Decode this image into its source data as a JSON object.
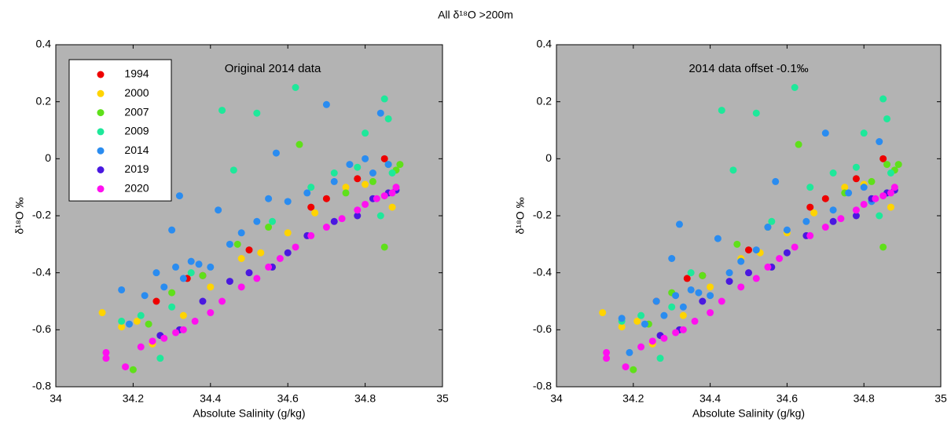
{
  "title": "All δ¹⁸O >200m",
  "chart_data": [
    {
      "type": "scatter",
      "annotation": "Original 2014 data",
      "xlabel": "Absolute Salinity (g/kg)",
      "ylabel": "δ¹⁸O ‰",
      "xlim": [
        34,
        35
      ],
      "ylim": [
        -0.8,
        0.4
      ],
      "xticks": [
        34,
        34.2,
        34.4,
        34.6,
        34.8,
        35
      ],
      "yticks": [
        -0.8,
        -0.6,
        -0.4,
        -0.2,
        0,
        0.2,
        0.4
      ],
      "background": "#b3b3b3",
      "legend": "upper left",
      "series": [
        {
          "name": "1994",
          "color": "#ee0000",
          "x": [
            34.26,
            34.34,
            34.38,
            34.5,
            34.66,
            34.7,
            34.78,
            34.85
          ],
          "values": [
            -0.5,
            -0.42,
            -0.41,
            -0.32,
            -0.17,
            -0.14,
            -0.07,
            0.0
          ]
        },
        {
          "name": "2000",
          "color": "#ffd400",
          "x": [
            34.12,
            34.17,
            34.21,
            34.25,
            34.33,
            34.4,
            34.48,
            34.53,
            34.6,
            34.67,
            34.75,
            34.8,
            34.87
          ],
          "values": [
            -0.54,
            -0.59,
            -0.57,
            -0.65,
            -0.55,
            -0.45,
            -0.35,
            -0.33,
            -0.26,
            -0.19,
            -0.1,
            -0.09,
            -0.17
          ]
        },
        {
          "name": "2007",
          "color": "#5fe01a",
          "x": [
            34.2,
            34.24,
            34.3,
            34.38,
            34.47,
            34.55,
            34.63,
            34.75,
            34.82,
            34.86,
            34.88,
            34.89,
            34.85
          ],
          "values": [
            -0.74,
            -0.58,
            -0.47,
            -0.41,
            -0.3,
            -0.24,
            0.05,
            -0.12,
            -0.08,
            -0.02,
            -0.04,
            -0.02,
            -0.31
          ]
        },
        {
          "name": "2009",
          "color": "#1ee89a",
          "x": [
            34.17,
            34.22,
            34.27,
            34.3,
            34.35,
            34.43,
            34.46,
            34.52,
            34.56,
            34.62,
            34.66,
            34.72,
            34.78,
            34.8,
            34.85,
            34.86,
            34.87,
            34.84
          ],
          "values": [
            -0.57,
            -0.55,
            -0.7,
            -0.52,
            -0.4,
            0.17,
            -0.04,
            0.16,
            -0.22,
            0.25,
            -0.1,
            -0.05,
            -0.03,
            0.09,
            0.21,
            0.14,
            -0.05,
            -0.2
          ]
        },
        {
          "name": "2014",
          "color": "#2a8cf0",
          "x": [
            34.17,
            34.19,
            34.23,
            34.26,
            34.28,
            34.3,
            34.31,
            34.32,
            34.33,
            34.35,
            34.37,
            34.4,
            34.42,
            34.45,
            34.48,
            34.52,
            34.55,
            34.57,
            34.6,
            34.65,
            34.7,
            34.72,
            34.76,
            34.8,
            34.82,
            34.84,
            34.86
          ],
          "values": [
            -0.46,
            -0.58,
            -0.48,
            -0.4,
            -0.45,
            -0.25,
            -0.38,
            -0.13,
            -0.42,
            -0.36,
            -0.37,
            -0.38,
            -0.18,
            -0.3,
            -0.26,
            -0.22,
            -0.14,
            0.02,
            -0.15,
            -0.12,
            0.19,
            -0.08,
            -0.02,
            0.0,
            -0.05,
            0.16,
            -0.02
          ]
        },
        {
          "name": "2019",
          "color": "#4a18e0",
          "x": [
            34.27,
            34.32,
            34.38,
            34.45,
            34.5,
            34.56,
            34.6,
            34.65,
            34.72,
            34.78,
            34.82,
            34.86,
            34.88
          ],
          "values": [
            -0.62,
            -0.6,
            -0.5,
            -0.43,
            -0.4,
            -0.38,
            -0.33,
            -0.27,
            -0.22,
            -0.2,
            -0.14,
            -0.12,
            -0.11
          ]
        },
        {
          "name": "2020",
          "color": "#ff10f0",
          "x": [
            34.13,
            34.13,
            34.18,
            34.22,
            34.25,
            34.28,
            34.31,
            34.33,
            34.36,
            34.4,
            34.43,
            34.48,
            34.52,
            34.55,
            34.58,
            34.62,
            34.66,
            34.7,
            34.74,
            34.78,
            34.8,
            34.83,
            34.85,
            34.87,
            34.88
          ],
          "values": [
            -0.68,
            -0.7,
            -0.73,
            -0.66,
            -0.64,
            -0.63,
            -0.61,
            -0.6,
            -0.57,
            -0.54,
            -0.5,
            -0.45,
            -0.42,
            -0.38,
            -0.35,
            -0.31,
            -0.27,
            -0.24,
            -0.21,
            -0.18,
            -0.16,
            -0.14,
            -0.13,
            -0.12,
            -0.1
          ]
        }
      ]
    },
    {
      "type": "scatter",
      "annotation": "2014 data offset -0.1‰",
      "xlabel": "Absolute Salinity (g/kg)",
      "ylabel": "δ¹⁸O ‰",
      "xlim": [
        34,
        35
      ],
      "ylim": [
        -0.8,
        0.4
      ],
      "xticks": [
        34,
        34.2,
        34.4,
        34.6,
        34.8,
        35
      ],
      "yticks": [
        -0.8,
        -0.6,
        -0.4,
        -0.2,
        0,
        0.2,
        0.4
      ],
      "background": "#b3b3b3",
      "series": [
        {
          "color": "#ee0000",
          "x": [
            34.26,
            34.34,
            34.38,
            34.5,
            34.66,
            34.7,
            34.78,
            34.85
          ],
          "values": [
            -0.5,
            -0.42,
            -0.41,
            -0.32,
            -0.17,
            -0.14,
            -0.07,
            0.0
          ]
        },
        {
          "color": "#ffd400",
          "x": [
            34.12,
            34.17,
            34.21,
            34.25,
            34.33,
            34.4,
            34.48,
            34.53,
            34.6,
            34.67,
            34.75,
            34.8,
            34.87
          ],
          "values": [
            -0.54,
            -0.59,
            -0.57,
            -0.65,
            -0.55,
            -0.45,
            -0.35,
            -0.33,
            -0.26,
            -0.19,
            -0.1,
            -0.09,
            -0.17
          ]
        },
        {
          "color": "#5fe01a",
          "x": [
            34.2,
            34.24,
            34.3,
            34.38,
            34.47,
            34.55,
            34.63,
            34.75,
            34.82,
            34.86,
            34.88,
            34.89,
            34.85
          ],
          "values": [
            -0.74,
            -0.58,
            -0.47,
            -0.41,
            -0.3,
            -0.24,
            0.05,
            -0.12,
            -0.08,
            -0.02,
            -0.04,
            -0.02,
            -0.31
          ]
        },
        {
          "color": "#1ee89a",
          "x": [
            34.17,
            34.22,
            34.27,
            34.3,
            34.35,
            34.43,
            34.46,
            34.52,
            34.56,
            34.62,
            34.66,
            34.72,
            34.78,
            34.8,
            34.85,
            34.86,
            34.87,
            34.84
          ],
          "values": [
            -0.57,
            -0.55,
            -0.7,
            -0.52,
            -0.4,
            0.17,
            -0.04,
            0.16,
            -0.22,
            0.25,
            -0.1,
            -0.05,
            -0.03,
            0.09,
            0.21,
            0.14,
            -0.05,
            -0.2
          ]
        },
        {
          "color": "#2a8cf0",
          "x": [
            34.17,
            34.19,
            34.23,
            34.26,
            34.28,
            34.3,
            34.31,
            34.32,
            34.33,
            34.35,
            34.37,
            34.4,
            34.42,
            34.45,
            34.48,
            34.52,
            34.55,
            34.57,
            34.6,
            34.65,
            34.7,
            34.72,
            34.76,
            34.8,
            34.82,
            34.84,
            34.86
          ],
          "values": [
            -0.56,
            -0.68,
            -0.58,
            -0.5,
            -0.55,
            -0.35,
            -0.48,
            -0.23,
            -0.52,
            -0.46,
            -0.47,
            -0.48,
            -0.28,
            -0.4,
            -0.36,
            -0.32,
            -0.24,
            -0.08,
            -0.25,
            -0.22,
            0.09,
            -0.18,
            -0.12,
            -0.1,
            -0.15,
            0.06,
            -0.12
          ]
        },
        {
          "color": "#4a18e0",
          "x": [
            34.27,
            34.32,
            34.38,
            34.45,
            34.5,
            34.56,
            34.6,
            34.65,
            34.72,
            34.78,
            34.82,
            34.86,
            34.88
          ],
          "values": [
            -0.62,
            -0.6,
            -0.5,
            -0.43,
            -0.4,
            -0.38,
            -0.33,
            -0.27,
            -0.22,
            -0.2,
            -0.14,
            -0.12,
            -0.11
          ]
        },
        {
          "color": "#ff10f0",
          "x": [
            34.13,
            34.13,
            34.18,
            34.22,
            34.25,
            34.28,
            34.31,
            34.33,
            34.36,
            34.4,
            34.43,
            34.48,
            34.52,
            34.55,
            34.58,
            34.62,
            34.66,
            34.7,
            34.74,
            34.78,
            34.8,
            34.83,
            34.85,
            34.87,
            34.88
          ],
          "values": [
            -0.68,
            -0.7,
            -0.73,
            -0.66,
            -0.64,
            -0.63,
            -0.61,
            -0.6,
            -0.57,
            -0.54,
            -0.5,
            -0.45,
            -0.42,
            -0.38,
            -0.35,
            -0.31,
            -0.27,
            -0.24,
            -0.21,
            -0.18,
            -0.16,
            -0.14,
            -0.13,
            -0.12,
            -0.1
          ]
        }
      ]
    }
  ]
}
